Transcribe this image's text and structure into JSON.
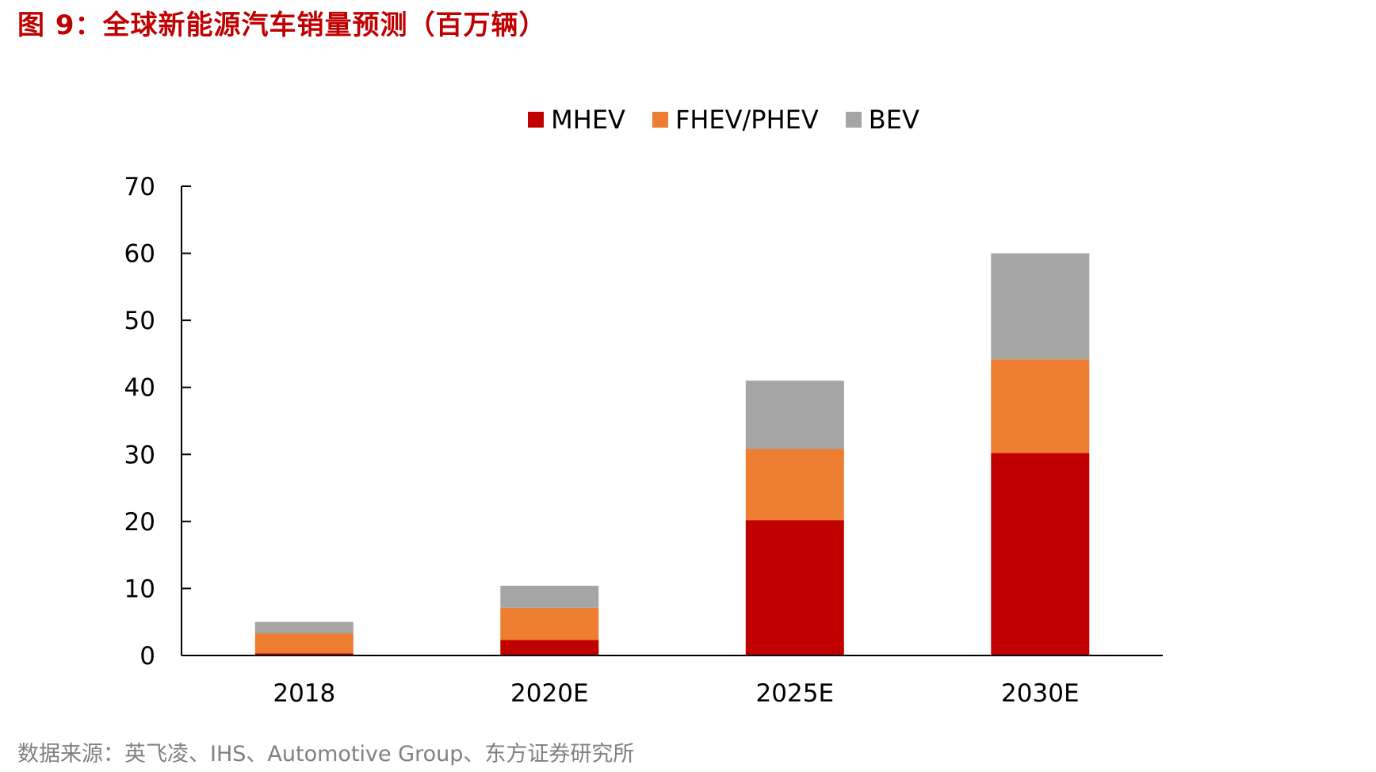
{
  "figure": {
    "title": "图 9：全球新能源汽车销量预测（百万辆）",
    "source": "数据来源：英飞凌、IHS、Automotive Group、东方证券研究所"
  },
  "colors": {
    "title": "#c00000",
    "source": "#808080",
    "axis": "#000000"
  },
  "chart_data": {
    "type": "bar",
    "stacked": true,
    "categories": [
      "2018",
      "2020E",
      "2025E",
      "2030E"
    ],
    "series": [
      {
        "name": "MHEV",
        "color": "#c00000",
        "values": [
          0.3,
          2.3,
          20.2,
          30.2
        ]
      },
      {
        "name": "FHEV/PHEV",
        "color": "#ed7d31",
        "values": [
          3.0,
          4.8,
          10.6,
          14.0
        ]
      },
      {
        "name": "BEV",
        "color": "#a5a5a5",
        "values": [
          1.7,
          3.3,
          10.2,
          15.8
        ]
      }
    ],
    "ylim": [
      0,
      70
    ],
    "yticks": [
      0,
      10,
      20,
      30,
      40,
      50,
      60,
      70
    ],
    "legend_position": "top-center",
    "grid": false
  }
}
